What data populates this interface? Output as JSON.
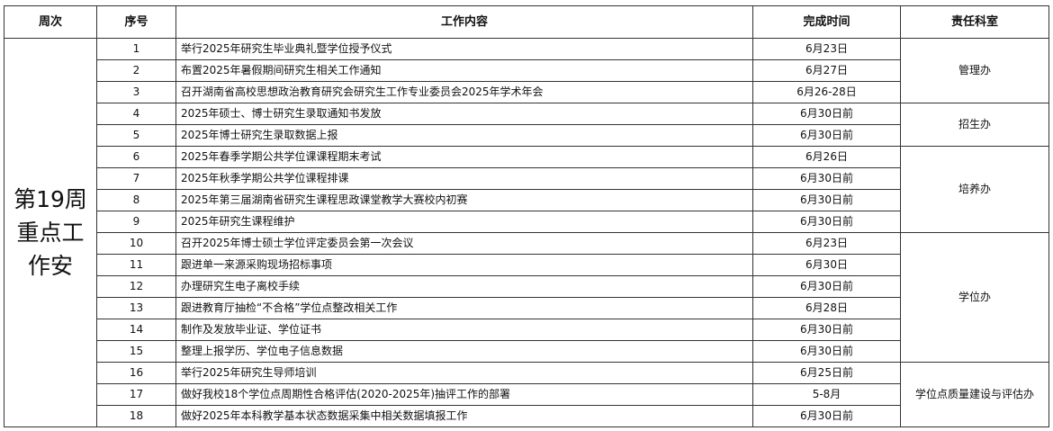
{
  "headers": {
    "week": "周次",
    "no": "序号",
    "content": "工作内容",
    "time": "完成时间",
    "dept": "责任科室"
  },
  "week_label": "第19周重点工作安",
  "rows": [
    {
      "no": "1",
      "content": "举行2025年研究生毕业典礼暨学位授予仪式",
      "time": "6月23日"
    },
    {
      "no": "2",
      "content": "布置2025年暑假期间研究生相关工作通知",
      "time": "6月27日"
    },
    {
      "no": "3",
      "content": "召开湖南省高校思想政治教育研究会研究生工作专业委员会2025年学术年会",
      "time": "6月26-28日"
    },
    {
      "no": "4",
      "content": "2025年硕士、博士研究生录取通知书发放",
      "time": "6月30日前"
    },
    {
      "no": "5",
      "content": "2025年博士研究生录取数据上报",
      "time": "6月30日前"
    },
    {
      "no": "6",
      "content": "2025年春季学期公共学位课课程期末考试",
      "time": "6月26日"
    },
    {
      "no": "7",
      "content": "2025年秋季学期公共学位课程排课",
      "time": "6月30日前"
    },
    {
      "no": "8",
      "content": "2025年第三届湖南省研究生课程思政课堂教学大赛校内初赛",
      "time": "6月30日前"
    },
    {
      "no": "9",
      "content": "2025年研究生课程维护",
      "time": "6月30日前"
    },
    {
      "no": "10",
      "content": "召开2025年博士硕士学位评定委员会第一次会议",
      "time": "6月23日"
    },
    {
      "no": "11",
      "content": "跟进单一来源采购现场招标事项",
      "time": "6月30日"
    },
    {
      "no": "12",
      "content": "办理研究生电子离校手续",
      "time": "6月30日前"
    },
    {
      "no": "13",
      "content": "跟进教育厅抽检“不合格”学位点整改相关工作",
      "time": "6月28日"
    },
    {
      "no": "14",
      "content": "制作及发放毕业证、学位证书",
      "time": "6月30日前"
    },
    {
      "no": "15",
      "content": "整理上报学历、学位电子信息数据",
      "time": "6月30日前"
    },
    {
      "no": "16",
      "content": "举行2025年研究生导师培训",
      "time": "6月25日前"
    },
    {
      "no": "17",
      "content": "做好我校18个学位点周期性合格评估(2020-2025年)抽评工作的部署",
      "time": "5-8月"
    },
    {
      "no": "18",
      "content": "做好2025年本科教学基本状态数据采集中相关数据填报工作",
      "time": "6月30日前"
    }
  ],
  "depts": [
    "管理办",
    "招生办",
    "培养办",
    "学位办",
    "学位点质量建设与评估办"
  ]
}
